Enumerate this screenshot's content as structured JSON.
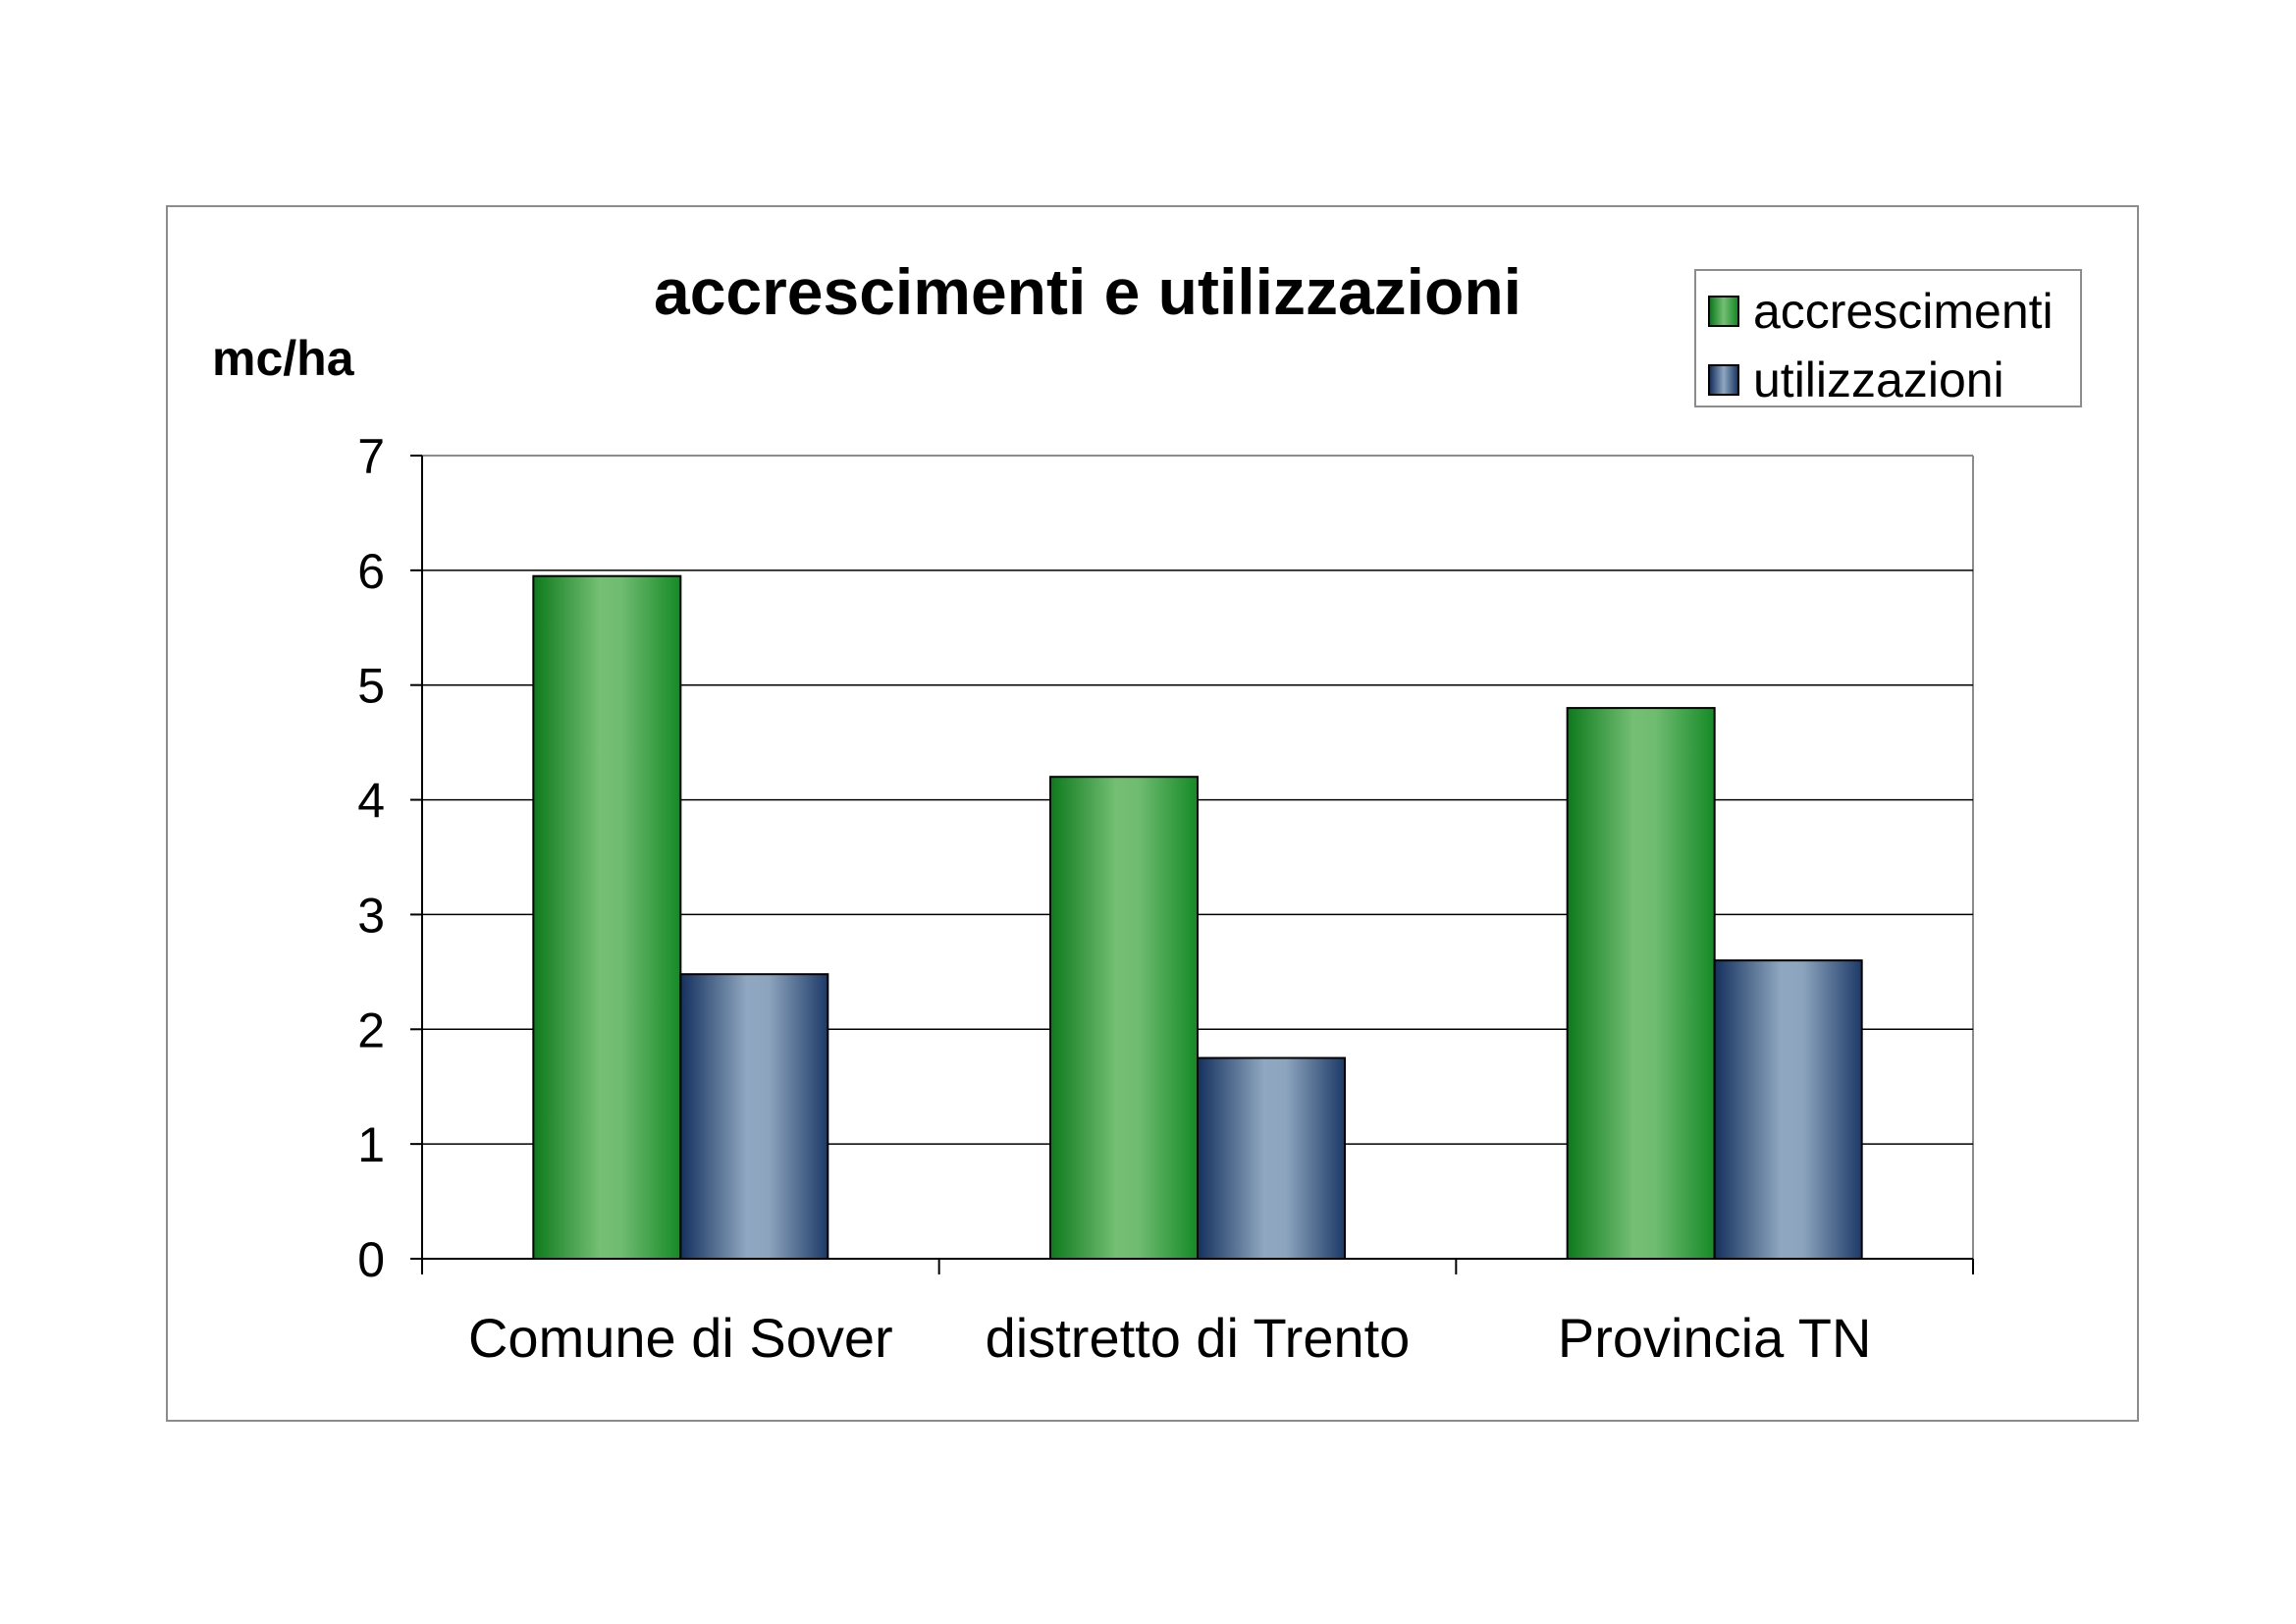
{
  "chart_data": {
    "type": "bar",
    "title": "accrescimenti e utilizzazioni",
    "ylabel": "mc/ha",
    "xlabel": "",
    "categories": [
      "Comune di Sover",
      "distretto di Trento",
      "Provincia TN"
    ],
    "series": [
      {
        "name": "accrescimenti",
        "values": [
          5.95,
          4.2,
          4.8
        ],
        "color": "#3fa04a"
      },
      {
        "name": "utilizzazioni",
        "values": [
          2.48,
          1.75,
          2.6
        ],
        "color": "#5a7396"
      }
    ],
    "ylim": [
      0,
      7
    ],
    "yticks": [
      "0",
      "1",
      "2",
      "3",
      "4",
      "5",
      "6",
      "7"
    ],
    "grid": true,
    "legend_position": "top-right"
  }
}
